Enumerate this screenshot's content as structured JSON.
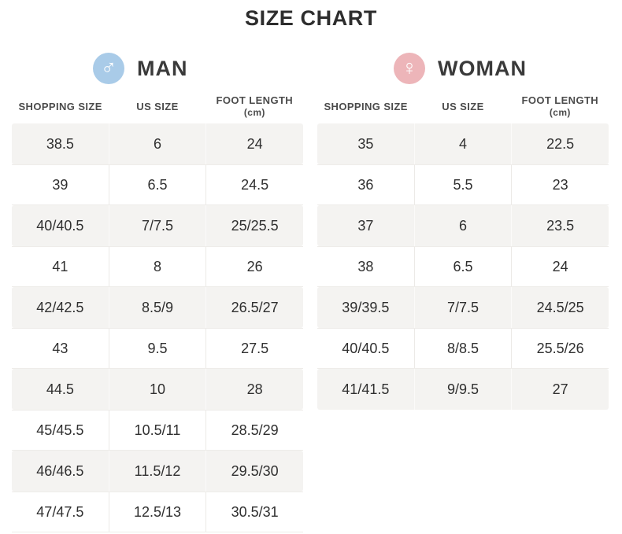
{
  "title": "SIZE CHART",
  "columns": {
    "shopping": "SHOPPING SIZE",
    "us": "US SIZE",
    "foot": "FOOT LENGTH",
    "foot_unit": "(cm)"
  },
  "sections": {
    "man": {
      "label": "MAN",
      "symbol": "♂",
      "circle_color": "#a9cbe8"
    },
    "woman": {
      "label": "WOMAN",
      "symbol": "♀",
      "circle_color": "#edb5b9"
    }
  },
  "chart_data": [
    {
      "type": "table",
      "title": "MAN",
      "columns": [
        "SHOPPING SIZE",
        "US SIZE",
        "FOOT LENGTH (cm)"
      ],
      "rows": [
        [
          "38.5",
          "6",
          "24"
        ],
        [
          "39",
          "6.5",
          "24.5"
        ],
        [
          "40/40.5",
          "7/7.5",
          "25/25.5"
        ],
        [
          "41",
          "8",
          "26"
        ],
        [
          "42/42.5",
          "8.5/9",
          "26.5/27"
        ],
        [
          "43",
          "9.5",
          "27.5"
        ],
        [
          "44.5",
          "10",
          "28"
        ],
        [
          "45/45.5",
          "10.5/11",
          "28.5/29"
        ],
        [
          "46/46.5",
          "11.5/12",
          "29.5/30"
        ],
        [
          "47/47.5",
          "12.5/13",
          "30.5/31"
        ]
      ]
    },
    {
      "type": "table",
      "title": "WOMAN",
      "columns": [
        "SHOPPING SIZE",
        "US SIZE",
        "FOOT LENGTH (cm)"
      ],
      "rows": [
        [
          "35",
          "4",
          "22.5"
        ],
        [
          "36",
          "5.5",
          "23"
        ],
        [
          "37",
          "6",
          "23.5"
        ],
        [
          "38",
          "6.5",
          "24"
        ],
        [
          "39/39.5",
          "7/7.5",
          "24.5/25"
        ],
        [
          "40/40.5",
          "8/8.5",
          "25.5/26"
        ],
        [
          "41/41.5",
          "9/9.5",
          "27"
        ]
      ]
    }
  ]
}
